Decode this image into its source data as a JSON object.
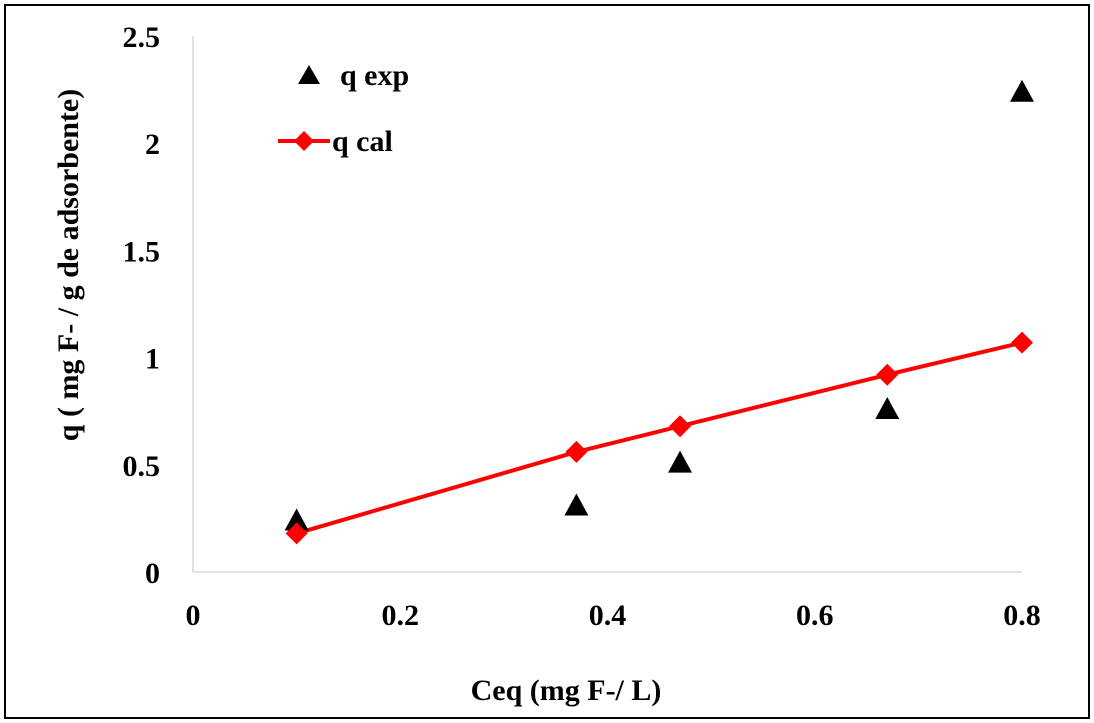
{
  "chart_data": {
    "type": "scatter",
    "title": "",
    "xlabel": "Ceq (mg F-/ L)",
    "ylabel": "q ( mg F- / g de adsorbente)",
    "xlim": [
      0,
      0.8
    ],
    "ylim": [
      0,
      2.5
    ],
    "x_ticks": [
      "0",
      "0.2",
      "0.4",
      "0.6",
      "0.8"
    ],
    "y_ticks": [
      "0",
      "0.5",
      "1",
      "1.5",
      "2",
      "2.5"
    ],
    "grid": false,
    "legend_position": "top-left",
    "series": [
      {
        "name": "q exp",
        "mode": "markers",
        "marker": "triangle",
        "color": "#000000",
        "x": [
          0.1,
          0.37,
          0.47,
          0.67,
          0.8
        ],
        "y": [
          0.24,
          0.31,
          0.51,
          0.76,
          2.24
        ]
      },
      {
        "name": "q cal",
        "mode": "lines+markers",
        "marker": "diamond",
        "color": "#ff0000",
        "x": [
          0.1,
          0.37,
          0.47,
          0.67,
          0.8
        ],
        "y": [
          0.18,
          0.56,
          0.68,
          0.92,
          1.07
        ]
      }
    ]
  }
}
